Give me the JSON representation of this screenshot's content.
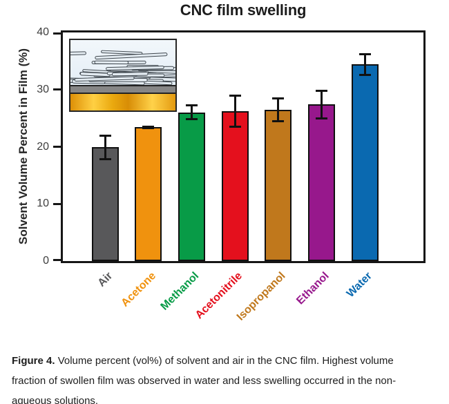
{
  "title": "CNC film swelling",
  "chart_data": {
    "type": "bar",
    "title": "CNC film swelling",
    "xlabel": "",
    "ylabel": "Solvent Volume Percent in Film (%)",
    "ylim": [
      0,
      40
    ],
    "yticks": [
      0,
      10,
      20,
      30,
      40
    ],
    "grid": false,
    "legend": "none",
    "categories": [
      "Air",
      "Acetone",
      "Methanol",
      "Acetonitrile",
      "Isopropanol",
      "Ethanol",
      "Water"
    ],
    "values": [
      19.9,
      23.4,
      26.0,
      26.2,
      26.5,
      27.4,
      34.4
    ],
    "errors": [
      2.2,
      0.3,
      1.4,
      2.9,
      2.2,
      2.6,
      2.0
    ],
    "bar_colors": [
      "#58585a",
      "#f0920e",
      "#089b47",
      "#e4101d",
      "#c0781c",
      "#97188c",
      "#0a69b0"
    ],
    "error_bar_color": "#111111",
    "axis_color": "#161616"
  },
  "inset_illustration": {
    "subject": "cnc-film-cross-section",
    "colors": {
      "sky": "#e9f1f8",
      "rods": "#e3ebf1",
      "rod_outline": "#3f474e",
      "gray_substrate": "#868686",
      "gold_substrate": "#f0a51e"
    }
  },
  "caption": {
    "bold_prefix": "Figure 4.",
    "line1": "Volume percent (vol%) of solvent and air in the CNC film. Highest volume",
    "line2": "fraction of swollen film was observed in water and less swelling occurred in the non-",
    "line3": "aqueous solutions."
  }
}
